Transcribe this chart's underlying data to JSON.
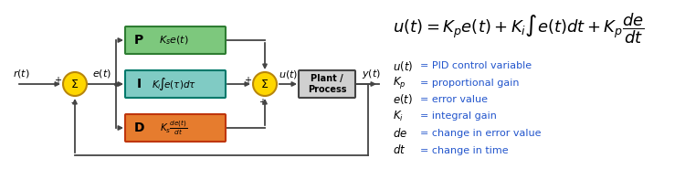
{
  "bg_color": "#ffffff",
  "colors": {
    "P_box": "#7DC87D",
    "P_border": "#2E7D32",
    "I_box": "#80CBC4",
    "I_border": "#00796B",
    "D_box": "#E67C2E",
    "D_border": "#BF360C",
    "summer_fill": "#FFD700",
    "summer_edge": "#B8860B",
    "plant_fill": "#D0D0D0",
    "plant_edge": "#444444",
    "line_color": "#444444",
    "label_color": "#2255CC"
  },
  "legend": [
    [
      "$u(t)$",
      "= PID control variable"
    ],
    [
      "$K_p$",
      "= proportional gain"
    ],
    [
      "$e(t)$",
      "= error value"
    ],
    [
      "$K_i$",
      "= integral gain"
    ],
    [
      "$de$",
      "= change in error value"
    ],
    [
      "$dt$",
      "= change in time"
    ]
  ]
}
